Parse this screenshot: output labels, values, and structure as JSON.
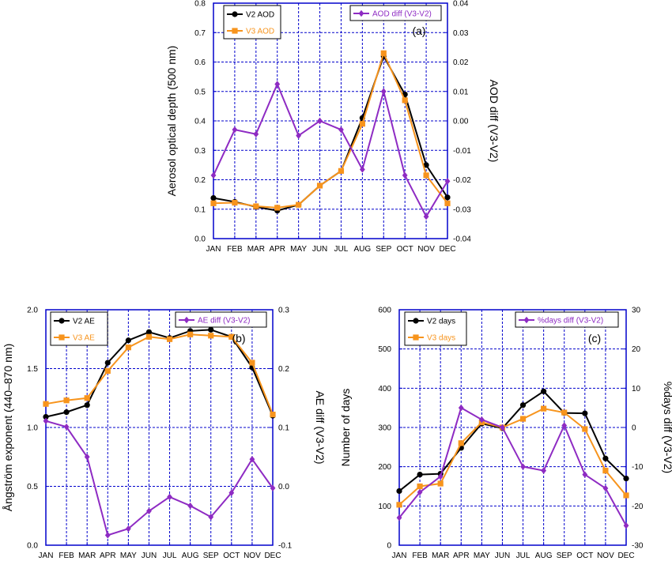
{
  "colors": {
    "v2": "#000000",
    "v3": "#f7941d",
    "diff": "#8e2bc3",
    "frame": "#0000cc",
    "grid": "#0000cc"
  },
  "chart_data": [
    {
      "type": "line",
      "panel_label": "(a)",
      "categories": [
        "JAN",
        "FEB",
        "MAR",
        "APR",
        "MAY",
        "JUN",
        "JUL",
        "AUG",
        "SEP",
        "OCT",
        "NOV",
        "DEC"
      ],
      "ylabel": "Aerosol optical depth (500 nm)",
      "y2label": "AOD diff (V3-V2)",
      "ylim": [
        0,
        0.8
      ],
      "y2lim": [
        -0.04,
        0.04
      ],
      "yticks": [
        "0.0",
        "0.1",
        "0.2",
        "0.3",
        "0.4",
        "0.5",
        "0.6",
        "0.7",
        "0.8"
      ],
      "y2ticks": [
        "-0.04",
        "-0.03",
        "-0.02",
        "-0.01",
        "0.00",
        "0.01",
        "0.02",
        "0.03",
        "0.04"
      ],
      "grid": true,
      "series": [
        {
          "name": "V2 AOD",
          "axis": "left",
          "color": "#000000",
          "marker": "circle",
          "values": [
            0.138,
            0.125,
            0.108,
            0.095,
            0.115,
            0.18,
            0.23,
            0.41,
            0.62,
            0.49,
            0.25,
            0.14
          ]
        },
        {
          "name": "V3 AOD",
          "axis": "left",
          "color": "#f7941d",
          "marker": "square",
          "values": [
            0.12,
            0.122,
            0.11,
            0.105,
            0.115,
            0.18,
            0.23,
            0.39,
            0.63,
            0.47,
            0.215,
            0.12
          ]
        },
        {
          "name": "AOD diff (V3-V2)",
          "axis": "right",
          "color": "#8e2bc3",
          "marker": "diamond",
          "values": [
            -0.0185,
            -0.003,
            -0.0045,
            0.0125,
            -0.005,
            0.0,
            -0.003,
            -0.0165,
            0.01,
            -0.0185,
            -0.0325,
            -0.0205
          ]
        }
      ]
    },
    {
      "type": "line",
      "panel_label": "(b)",
      "categories": [
        "JAN",
        "FEB",
        "MAR",
        "APR",
        "MAY",
        "JUN",
        "JUL",
        "AUG",
        "SEP",
        "OCT",
        "NOV",
        "DEC"
      ],
      "ylabel": "Ångström exponent (440–870 nm)",
      "y2label": "AE diff (V3-V2)",
      "ylim": [
        0,
        2.0
      ],
      "y2lim": [
        -0.1,
        0.3
      ],
      "yticks": [
        "0.0",
        "0.5",
        "1.0",
        "1.5",
        "2.0"
      ],
      "y2ticks": [
        "-0.1",
        "0.0",
        "0.1",
        "0.2",
        "0.3"
      ],
      "grid": true,
      "series": [
        {
          "name": "V2 AE",
          "axis": "left",
          "color": "#000000",
          "marker": "circle",
          "values": [
            1.09,
            1.13,
            1.19,
            1.55,
            1.74,
            1.81,
            1.76,
            1.82,
            1.83,
            1.77,
            1.51,
            1.1
          ]
        },
        {
          "name": "V3 AE",
          "axis": "left",
          "color": "#f7941d",
          "marker": "square",
          "values": [
            1.2,
            1.23,
            1.25,
            1.48,
            1.68,
            1.77,
            1.75,
            1.79,
            1.78,
            1.77,
            1.55,
            1.11
          ]
        },
        {
          "name": "AE diff (V3-V2)",
          "axis": "right",
          "color": "#8e2bc3",
          "marker": "diamond",
          "values": [
            0.111,
            0.101,
            0.05,
            -0.083,
            -0.072,
            -0.042,
            -0.018,
            -0.033,
            -0.052,
            -0.011,
            0.046,
            -0.003
          ]
        }
      ]
    },
    {
      "type": "line",
      "panel_label": "(c)",
      "categories": [
        "JAN",
        "FEB",
        "MAR",
        "APR",
        "MAY",
        "JUN",
        "JUL",
        "AUG",
        "SEP",
        "OCT",
        "NOV",
        "DEC"
      ],
      "ylabel": "Number of days",
      "y2label": "%days diff (V3-V2)",
      "ylim": [
        0,
        600
      ],
      "y2lim": [
        -30,
        30
      ],
      "yticks": [
        "0",
        "100",
        "200",
        "300",
        "400",
        "500",
        "600"
      ],
      "y2ticks": [
        "-30",
        "-20",
        "-10",
        "0",
        "10",
        "20",
        "30"
      ],
      "grid": true,
      "series": [
        {
          "name": "V2 days",
          "axis": "left",
          "color": "#000000",
          "marker": "circle",
          "values": [
            138,
            180,
            182,
            248,
            310,
            298,
            357,
            392,
            337,
            336,
            221,
            170
          ]
        },
        {
          "name": "V3 days",
          "axis": "left",
          "color": "#f7941d",
          "marker": "square",
          "values": [
            103,
            150,
            157,
            260,
            313,
            300,
            322,
            348,
            338,
            296,
            190,
            127
          ]
        },
        {
          "name": "%days diff (V3-V2)",
          "axis": "right",
          "color": "#8e2bc3",
          "marker": "diamond",
          "values": [
            -23,
            -16.5,
            -12.5,
            5,
            2,
            0,
            -10,
            -11,
            0.5,
            -12,
            -15.5,
            -25
          ]
        }
      ]
    }
  ]
}
